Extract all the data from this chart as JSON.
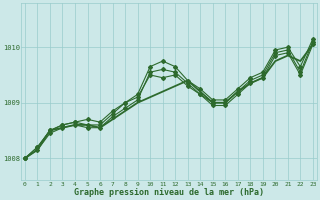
{
  "bg_color": "#cce8e8",
  "grid_color": "#99cccc",
  "line_color": "#2d6a2d",
  "xlabel": "Graphe pression niveau de la mer (hPa)",
  "ylabel_ticks": [
    1008,
    1009,
    1010
  ],
  "xlim": [
    -0.3,
    23.3
  ],
  "ylim": [
    1007.6,
    1010.8
  ],
  "xticks": [
    0,
    1,
    2,
    3,
    4,
    5,
    6,
    7,
    8,
    9,
    10,
    11,
    12,
    13,
    14,
    15,
    16,
    17,
    18,
    19,
    20,
    21,
    22,
    23
  ],
  "series": [
    {
      "y": [
        1008.0,
        1008.15,
        1008.5,
        1008.55,
        1008.6,
        1008.6,
        1008.55,
        1008.7,
        1008.85,
        1009.0,
        1009.1,
        1009.2,
        1009.3,
        1009.4,
        1009.2,
        1009.0,
        1009.0,
        1009.2,
        1009.35,
        1009.45,
        1009.75,
        1009.85,
        1009.75,
        1010.05
      ],
      "marker": null,
      "lw": 1.3
    },
    {
      "y": [
        1008.0,
        1008.2,
        1008.5,
        1008.6,
        1008.65,
        1008.6,
        1008.6,
        1008.8,
        1009.0,
        1009.1,
        1009.5,
        1009.45,
        1009.5,
        1009.3,
        1009.15,
        1009.0,
        1009.0,
        1009.2,
        1009.4,
        1009.5,
        1009.9,
        1009.95,
        1009.55,
        1010.1
      ],
      "marker": "D",
      "lw": 0.8,
      "ms": 2.0
    },
    {
      "y": [
        1008.0,
        1008.2,
        1008.5,
        1008.6,
        1008.65,
        1008.7,
        1008.65,
        1008.85,
        1009.0,
        1009.15,
        1009.65,
        1009.75,
        1009.65,
        1009.4,
        1009.25,
        1009.05,
        1009.05,
        1009.25,
        1009.45,
        1009.55,
        1009.95,
        1010.0,
        1009.65,
        1010.15
      ],
      "marker": "D",
      "lw": 0.8,
      "ms": 2.0
    },
    {
      "y": [
        1008.0,
        1008.15,
        1008.45,
        1008.55,
        1008.6,
        1008.55,
        1008.55,
        1008.75,
        1008.9,
        1009.05,
        1009.55,
        1009.6,
        1009.55,
        1009.35,
        1009.15,
        1008.95,
        1008.95,
        1009.15,
        1009.35,
        1009.45,
        1009.85,
        1009.9,
        1009.5,
        1010.05
      ],
      "marker": "D",
      "lw": 0.8,
      "ms": 2.0
    }
  ]
}
